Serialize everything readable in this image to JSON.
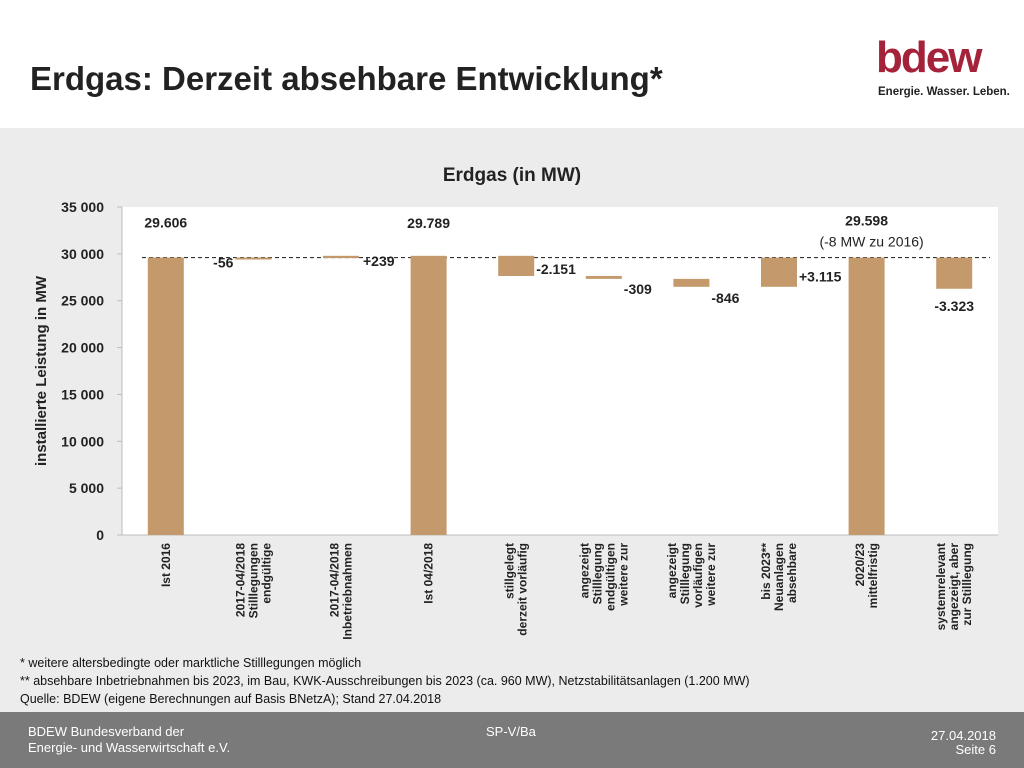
{
  "slide": {
    "title": "Erdgas: Derzeit absehbare Entwicklung*"
  },
  "logo": {
    "word": "bdew",
    "tagline": "Energie. Wasser. Leben."
  },
  "chart_data": {
    "type": "bar",
    "variant": "waterfall",
    "title": "Erdgas (in MW)",
    "ylabel": "installierte Leistung in MW",
    "xlabel": "",
    "ylim": [
      0,
      35000
    ],
    "yticks": [
      0,
      5000,
      10000,
      15000,
      20000,
      25000,
      30000,
      35000
    ],
    "ytick_labels": [
      "0",
      "5 000",
      "10 000",
      "15 000",
      "20 000",
      "25 000",
      "30 000",
      "35 000"
    ],
    "reference_line": 29606,
    "bar_color": "#c49a6c",
    "grid": false,
    "bars": [
      {
        "category": [
          "Ist 2016"
        ],
        "base": 0,
        "top": 29606,
        "label": "29.606"
      },
      {
        "category": [
          "endgültige",
          "Stilllegungen",
          "2017-04/2018"
        ],
        "base": 29550,
        "top": 29606,
        "label": "-56"
      },
      {
        "category": [
          "Inbetriebnahmen",
          "2017-04/2018"
        ],
        "base": 29550,
        "top": 29789,
        "label": "+239"
      },
      {
        "category": [
          "Ist 04/2018"
        ],
        "base": 0,
        "top": 29789,
        "label": "29.789"
      },
      {
        "category": [
          "derzeit vorläufig",
          "stillgelegt"
        ],
        "base": 27638,
        "top": 29789,
        "label": "-2.151"
      },
      {
        "category": [
          "weitere zur",
          "endgültigen",
          "Stilllegung",
          "angezeigt"
        ],
        "base": 27329,
        "top": 27638,
        "label": "-309"
      },
      {
        "category": [
          "weitere zur",
          "vorläufigen",
          "Stilllegung",
          "angezeigt"
        ],
        "base": 26483,
        "top": 27329,
        "label": "-846"
      },
      {
        "category": [
          "absehbare",
          "Neuanlagen",
          "bis 2023**"
        ],
        "base": 26483,
        "top": 29598,
        "label": "+3.115"
      },
      {
        "category": [
          "mittelfristig",
          "2020/23"
        ],
        "base": 0,
        "top": 29598,
        "label": "29.598",
        "sublabel": "(-8 MW zu 2016)"
      },
      {
        "category": [
          "zur Stilllegung",
          "angezeigt, aber",
          "systemrelevant"
        ],
        "base": 26275,
        "top": 29598,
        "label": "-3.323"
      }
    ]
  },
  "notes": {
    "line1": "* weitere altersbedingte oder marktliche Stilllegungen möglich",
    "line2": "** absehbare Inbetriebnahmen bis 2023, im Bau, KWK-Ausschreibungen bis 2023 (ca. 960 MW), Netzstabilitätsanlagen (1.200 MW)",
    "source": "Quelle: BDEW (eigene Berechnungen auf Basis BNetzA); Stand 27.04.2018"
  },
  "footer": {
    "org_line1": "BDEW Bundesverband der",
    "org_line2": "Energie- und Wasserwirtschaft e.V.",
    "code": "SP-V/Ba",
    "date": "27.04.2018",
    "page": "Seite 6"
  }
}
